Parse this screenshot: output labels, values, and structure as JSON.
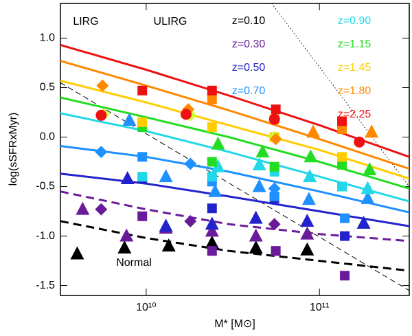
{
  "chart_data": {
    "type": "line",
    "y_label": "log(sSFRxMyr)",
    "x_label": "M* [M⊙]",
    "xscale": "log",
    "xlim": [
      3200000000.0,
      330000000000.0
    ],
    "xticks": [
      {
        "value": 10000000000.0,
        "label": "10¹⁰"
      },
      {
        "value": 100000000000.0,
        "label": "10¹¹"
      }
    ],
    "ylim": [
      -1.6,
      1.35
    ],
    "yticks": [
      {
        "value": -1.5,
        "label": "-1.5"
      },
      {
        "value": -1.0,
        "label": "-1.0"
      },
      {
        "value": -0.5,
        "label": "-0.5"
      },
      {
        "value": 0.0,
        "label": "0.0"
      },
      {
        "value": 0.5,
        "label": "0.5"
      },
      {
        "value": 1.0,
        "label": "1.0"
      }
    ],
    "annotations": [
      "LIRG",
      "ULIRG",
      "Normal"
    ],
    "x": [
      3200000000.0,
      10000000000.0,
      30000000000.0,
      100000000000.0,
      330000000000.0
    ],
    "series": [
      {
        "name": "z=0.10",
        "color": "#000000",
        "dash": true,
        "values": [
          -0.85,
          -1.02,
          -1.15,
          -1.25,
          -1.35
        ]
      },
      {
        "name": "z=0.30",
        "color": "#6a1b9a",
        "dash": true,
        "values": [
          -0.55,
          -0.73,
          -0.88,
          -0.98,
          -1.05
        ]
      },
      {
        "name": "z=0.50",
        "color": "#2222cc",
        "dash": false,
        "values": [
          -0.37,
          -0.47,
          -0.6,
          -0.75,
          -0.9
        ]
      },
      {
        "name": "z=0.70",
        "color": "#1e90ff",
        "dash": false,
        "values": [
          -0.09,
          -0.2,
          -0.35,
          -0.55,
          -0.76
        ]
      },
      {
        "name": "z=0.90",
        "color": "#22d8e8",
        "dash": false,
        "values": [
          0.24,
          0.06,
          -0.15,
          -0.4,
          -0.65
        ]
      },
      {
        "name": "z=1.15",
        "color": "#22dd22",
        "dash": false,
        "values": [
          0.4,
          0.2,
          0.0,
          -0.25,
          -0.52
        ]
      },
      {
        "name": "z=1.45",
        "color": "#ffcc00",
        "dash": false,
        "values": [
          0.57,
          0.35,
          0.12,
          -0.13,
          -0.42
        ]
      },
      {
        "name": "z=1.80",
        "color": "#ff8800",
        "dash": false,
        "values": [
          0.77,
          0.52,
          0.27,
          -0.02,
          -0.32
        ]
      },
      {
        "name": "z=2.25",
        "color": "#ee1111",
        "dash": false,
        "values": [
          0.93,
          0.68,
          0.42,
          0.12,
          -0.2
        ]
      }
    ],
    "reference_lines": [
      {
        "style": "dashed",
        "x": [
          3200000000.0,
          330000000000.0
        ],
        "values": [
          0.55,
          -1.55
        ]
      },
      {
        "style": "dotted",
        "x": [
          53000000000.0,
          330000000000.0
        ],
        "values": [
          1.35,
          -0.5
        ]
      }
    ],
    "points": [
      {
        "color": "#000000",
        "shape": "triangle",
        "x": [
          4000000000.0,
          7500000000.0,
          13500000000.0,
          24000000000.0,
          43000000000.0,
          85000000000.0
        ],
        "values": [
          -1.18,
          -1.12,
          -1.1,
          -1.07,
          -1.12,
          -1.14
        ]
      },
      {
        "color": "#6a1b9a",
        "shape": "triangle",
        "x": [
          4300000000.0,
          7700000000.0,
          13000000000.0,
          24000000000.0,
          43000000000.0,
          85000000000.0
        ],
        "values": [
          -0.73,
          -1.0,
          -0.92,
          -0.95,
          -1.0,
          -0.98
        ]
      },
      {
        "color": "#6a1b9a",
        "shape": "diamond",
        "x": [
          5500000000.0,
          18000000000.0,
          55000000000.0
        ],
        "values": [
          -0.73,
          -0.85,
          -0.88
        ]
      },
      {
        "color": "#6a1b9a",
        "shape": "square",
        "x": [
          9500000000.0,
          24000000000.0,
          56000000000.0,
          140000000000.0
        ],
        "values": [
          -0.8,
          -1.15,
          -1.15,
          -1.4
        ]
      },
      {
        "color": "#2222cc",
        "shape": "triangle",
        "x": [
          7800000000.0,
          13000000000.0,
          24000000000.0,
          43000000000.0,
          85000000000.0,
          180000000000.0
        ],
        "values": [
          -0.42,
          -0.9,
          -0.88,
          -0.82,
          -0.85,
          -0.87
        ]
      },
      {
        "color": "#2222cc",
        "shape": "square",
        "x": [
          9500000000.0,
          24000000000.0,
          55000000000.0,
          140000000000.0
        ],
        "values": [
          -0.42,
          -0.72,
          -0.62,
          -1.0
        ]
      },
      {
        "color": "#1e90ff",
        "shape": "triangle",
        "x": [
          8000000000.0,
          13000000000.0,
          25000000000.0,
          45000000000.0,
          87000000000.0,
          190000000000.0
        ],
        "values": [
          0.17,
          -0.4,
          -0.55,
          -0.5,
          -0.63,
          -0.62
        ]
      },
      {
        "color": "#1e90ff",
        "shape": "square",
        "x": [
          9500000000.0,
          24000000000.0,
          55000000000.0,
          140000000000.0
        ],
        "values": [
          -0.2,
          -0.45,
          -0.6,
          -0.82
        ]
      },
      {
        "color": "#1e90ff",
        "shape": "diamond",
        "x": [
          5500000000.0,
          18000000000.0,
          55000000000.0
        ],
        "values": [
          -0.15,
          -0.27,
          -0.52
        ]
      },
      {
        "color": "#22d8e8",
        "shape": "triangle",
        "x": [
          26000000000.0,
          45000000000.0,
          88000000000.0,
          190000000000.0
        ],
        "values": [
          -0.3,
          -0.28,
          -0.4,
          -0.52
        ]
      },
      {
        "color": "#22d8e8",
        "shape": "square",
        "x": [
          9500000000.0,
          24000000000.0,
          55000000000.0,
          135000000000.0
        ],
        "values": [
          -0.4,
          -0.4,
          -0.35,
          -0.5
        ]
      },
      {
        "color": "#22dd22",
        "shape": "triangle",
        "x": [
          26000000000.0,
          47000000000.0,
          89000000000.0,
          195000000000.0
        ],
        "values": [
          -0.07,
          -0.15,
          -0.2,
          -0.33
        ]
      },
      {
        "color": "#22dd22",
        "shape": "square",
        "x": [
          9500000000.0,
          24000000000.0,
          55000000000.0,
          135000000000.0
        ],
        "values": [
          0.1,
          -0.25,
          -0.3,
          -0.28
        ]
      },
      {
        "color": "#ffcc00",
        "shape": "square",
        "x": [
          9500000000.0,
          24000000000.0,
          55000000000.0,
          135000000000.0
        ],
        "values": [
          0.15,
          0.1,
          0.0,
          -0.2
        ]
      },
      {
        "color": "#ccff33",
        "shape": "diamond",
        "x": [
          5700000000.0,
          18000000000.0,
          55000000000.0
        ],
        "values": [
          0.23,
          0.22,
          0.0
        ]
      },
      {
        "color": "#ff8800",
        "shape": "diamond",
        "x": [
          5600000000.0,
          17500000000.0,
          56000000000.0
        ],
        "values": [
          0.52,
          0.28,
          -0.02
        ]
      },
      {
        "color": "#ff8800",
        "shape": "square",
        "x": [
          24000000000.0,
          55000000000.0,
          135000000000.0
        ],
        "values": [
          0.38,
          0.18,
          0.08
        ]
      },
      {
        "color": "#ff8800",
        "shape": "triangle",
        "x": [
          92000000000.0,
          200000000000.0
        ],
        "values": [
          0.05,
          0.05
        ]
      },
      {
        "color": "#ee1111",
        "shape": "square",
        "x": [
          9500000000.0,
          24000000000.0,
          56000000000.0,
          135000000000.0
        ],
        "values": [
          0.47,
          0.47,
          0.28,
          0.16
        ]
      },
      {
        "color": "#ee1111",
        "shape": "circle",
        "x": [
          5500000000.0,
          17000000000.0,
          55000000000.0,
          170000000000.0
        ],
        "values": [
          0.22,
          0.23,
          0.18,
          -0.05
        ]
      }
    ]
  }
}
